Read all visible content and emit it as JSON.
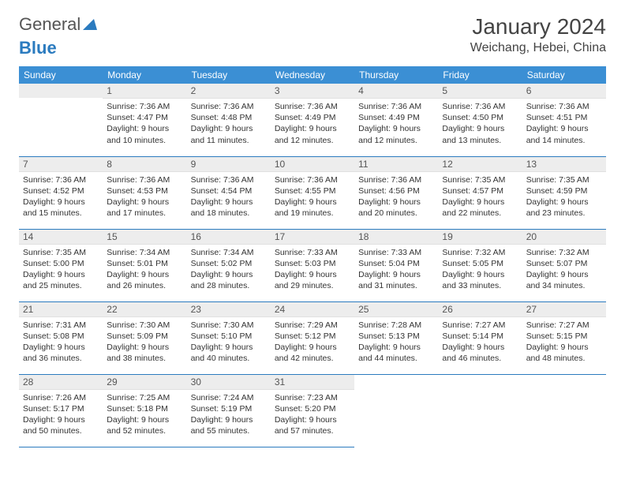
{
  "logo": {
    "text1": "General",
    "text2": "Blue"
  },
  "title": "January 2024",
  "location": "Weichang, Hebei, China",
  "colors": {
    "header_bg": "#3b8fd4",
    "header_text": "#ffffff",
    "daynum_bg": "#ededed",
    "border": "#2b7bbf",
    "logo_gray": "#555555",
    "logo_blue": "#2b7bbf"
  },
  "weekdays": [
    "Sunday",
    "Monday",
    "Tuesday",
    "Wednesday",
    "Thursday",
    "Friday",
    "Saturday"
  ],
  "weeks": [
    [
      null,
      {
        "n": "1",
        "sr": "Sunrise: 7:36 AM",
        "ss": "Sunset: 4:47 PM",
        "d1": "Daylight: 9 hours",
        "d2": "and 10 minutes."
      },
      {
        "n": "2",
        "sr": "Sunrise: 7:36 AM",
        "ss": "Sunset: 4:48 PM",
        "d1": "Daylight: 9 hours",
        "d2": "and 11 minutes."
      },
      {
        "n": "3",
        "sr": "Sunrise: 7:36 AM",
        "ss": "Sunset: 4:49 PM",
        "d1": "Daylight: 9 hours",
        "d2": "and 12 minutes."
      },
      {
        "n": "4",
        "sr": "Sunrise: 7:36 AM",
        "ss": "Sunset: 4:49 PM",
        "d1": "Daylight: 9 hours",
        "d2": "and 12 minutes."
      },
      {
        "n": "5",
        "sr": "Sunrise: 7:36 AM",
        "ss": "Sunset: 4:50 PM",
        "d1": "Daylight: 9 hours",
        "d2": "and 13 minutes."
      },
      {
        "n": "6",
        "sr": "Sunrise: 7:36 AM",
        "ss": "Sunset: 4:51 PM",
        "d1": "Daylight: 9 hours",
        "d2": "and 14 minutes."
      }
    ],
    [
      {
        "n": "7",
        "sr": "Sunrise: 7:36 AM",
        "ss": "Sunset: 4:52 PM",
        "d1": "Daylight: 9 hours",
        "d2": "and 15 minutes."
      },
      {
        "n": "8",
        "sr": "Sunrise: 7:36 AM",
        "ss": "Sunset: 4:53 PM",
        "d1": "Daylight: 9 hours",
        "d2": "and 17 minutes."
      },
      {
        "n": "9",
        "sr": "Sunrise: 7:36 AM",
        "ss": "Sunset: 4:54 PM",
        "d1": "Daylight: 9 hours",
        "d2": "and 18 minutes."
      },
      {
        "n": "10",
        "sr": "Sunrise: 7:36 AM",
        "ss": "Sunset: 4:55 PM",
        "d1": "Daylight: 9 hours",
        "d2": "and 19 minutes."
      },
      {
        "n": "11",
        "sr": "Sunrise: 7:36 AM",
        "ss": "Sunset: 4:56 PM",
        "d1": "Daylight: 9 hours",
        "d2": "and 20 minutes."
      },
      {
        "n": "12",
        "sr": "Sunrise: 7:35 AM",
        "ss": "Sunset: 4:57 PM",
        "d1": "Daylight: 9 hours",
        "d2": "and 22 minutes."
      },
      {
        "n": "13",
        "sr": "Sunrise: 7:35 AM",
        "ss": "Sunset: 4:59 PM",
        "d1": "Daylight: 9 hours",
        "d2": "and 23 minutes."
      }
    ],
    [
      {
        "n": "14",
        "sr": "Sunrise: 7:35 AM",
        "ss": "Sunset: 5:00 PM",
        "d1": "Daylight: 9 hours",
        "d2": "and 25 minutes."
      },
      {
        "n": "15",
        "sr": "Sunrise: 7:34 AM",
        "ss": "Sunset: 5:01 PM",
        "d1": "Daylight: 9 hours",
        "d2": "and 26 minutes."
      },
      {
        "n": "16",
        "sr": "Sunrise: 7:34 AM",
        "ss": "Sunset: 5:02 PM",
        "d1": "Daylight: 9 hours",
        "d2": "and 28 minutes."
      },
      {
        "n": "17",
        "sr": "Sunrise: 7:33 AM",
        "ss": "Sunset: 5:03 PM",
        "d1": "Daylight: 9 hours",
        "d2": "and 29 minutes."
      },
      {
        "n": "18",
        "sr": "Sunrise: 7:33 AM",
        "ss": "Sunset: 5:04 PM",
        "d1": "Daylight: 9 hours",
        "d2": "and 31 minutes."
      },
      {
        "n": "19",
        "sr": "Sunrise: 7:32 AM",
        "ss": "Sunset: 5:05 PM",
        "d1": "Daylight: 9 hours",
        "d2": "and 33 minutes."
      },
      {
        "n": "20",
        "sr": "Sunrise: 7:32 AM",
        "ss": "Sunset: 5:07 PM",
        "d1": "Daylight: 9 hours",
        "d2": "and 34 minutes."
      }
    ],
    [
      {
        "n": "21",
        "sr": "Sunrise: 7:31 AM",
        "ss": "Sunset: 5:08 PM",
        "d1": "Daylight: 9 hours",
        "d2": "and 36 minutes."
      },
      {
        "n": "22",
        "sr": "Sunrise: 7:30 AM",
        "ss": "Sunset: 5:09 PM",
        "d1": "Daylight: 9 hours",
        "d2": "and 38 minutes."
      },
      {
        "n": "23",
        "sr": "Sunrise: 7:30 AM",
        "ss": "Sunset: 5:10 PM",
        "d1": "Daylight: 9 hours",
        "d2": "and 40 minutes."
      },
      {
        "n": "24",
        "sr": "Sunrise: 7:29 AM",
        "ss": "Sunset: 5:12 PM",
        "d1": "Daylight: 9 hours",
        "d2": "and 42 minutes."
      },
      {
        "n": "25",
        "sr": "Sunrise: 7:28 AM",
        "ss": "Sunset: 5:13 PM",
        "d1": "Daylight: 9 hours",
        "d2": "and 44 minutes."
      },
      {
        "n": "26",
        "sr": "Sunrise: 7:27 AM",
        "ss": "Sunset: 5:14 PM",
        "d1": "Daylight: 9 hours",
        "d2": "and 46 minutes."
      },
      {
        "n": "27",
        "sr": "Sunrise: 7:27 AM",
        "ss": "Sunset: 5:15 PM",
        "d1": "Daylight: 9 hours",
        "d2": "and 48 minutes."
      }
    ],
    [
      {
        "n": "28",
        "sr": "Sunrise: 7:26 AM",
        "ss": "Sunset: 5:17 PM",
        "d1": "Daylight: 9 hours",
        "d2": "and 50 minutes."
      },
      {
        "n": "29",
        "sr": "Sunrise: 7:25 AM",
        "ss": "Sunset: 5:18 PM",
        "d1": "Daylight: 9 hours",
        "d2": "and 52 minutes."
      },
      {
        "n": "30",
        "sr": "Sunrise: 7:24 AM",
        "ss": "Sunset: 5:19 PM",
        "d1": "Daylight: 9 hours",
        "d2": "and 55 minutes."
      },
      {
        "n": "31",
        "sr": "Sunrise: 7:23 AM",
        "ss": "Sunset: 5:20 PM",
        "d1": "Daylight: 9 hours",
        "d2": "and 57 minutes."
      },
      null,
      null,
      null
    ]
  ]
}
